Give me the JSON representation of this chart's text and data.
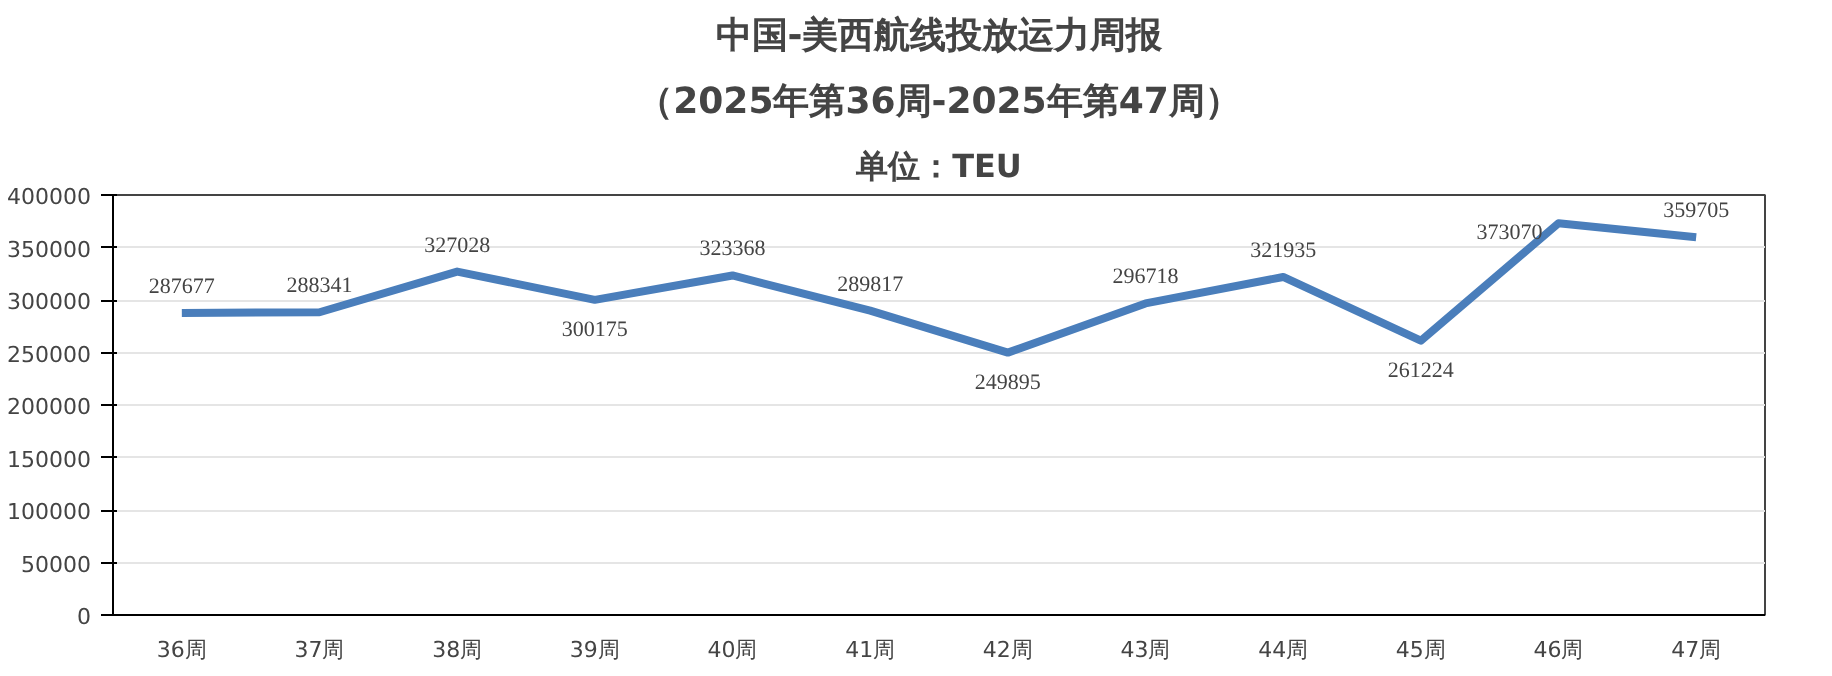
{
  "chart_data": {
    "type": "line",
    "title": "中国-美西航线投放运力周报",
    "subtitle": "（2025年第36周-2025年第47周）",
    "annotations": [
      "单位：TEU"
    ],
    "categories": [
      "36周",
      "37周",
      "38周",
      "39周",
      "40周",
      "41周",
      "42周",
      "43周",
      "44周",
      "45周",
      "46周",
      "47周"
    ],
    "series": [
      {
        "color": "#4a7ebb",
        "values": [
          287677,
          288341,
          327028,
          300175,
          323368,
          289817,
          249895,
          296718,
          321935,
          261224,
          373070,
          359705
        ]
      }
    ],
    "ylim": [
      0,
      400000
    ],
    "yticks": [
      0,
      50000,
      100000,
      150000,
      200000,
      250000,
      300000,
      350000,
      400000
    ],
    "grid": "y",
    "data_labels": true,
    "marker": "none",
    "line_style": "solid"
  }
}
